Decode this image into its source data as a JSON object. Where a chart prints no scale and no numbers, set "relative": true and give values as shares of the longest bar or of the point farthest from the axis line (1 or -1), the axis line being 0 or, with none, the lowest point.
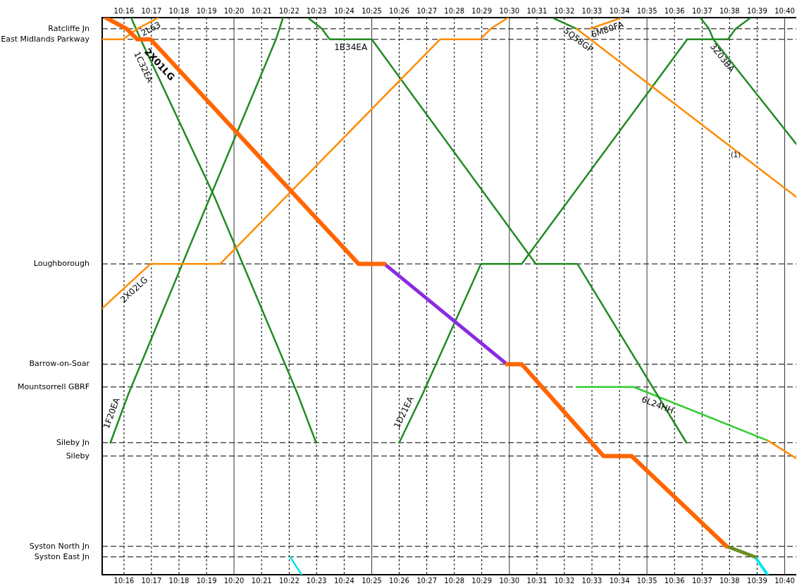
{
  "chart_data": {
    "type": "line",
    "marker": "none",
    "grid": "x",
    "legend": false,
    "relative": true,
    "xlim": [
      10.2535,
      10.6737
    ],
    "x2lim": [
      10.2535,
      10.6737
    ],
    "xticks": [
      {
        "value": 10.2667,
        "label": "10:16"
      },
      {
        "value": 10.2833,
        "label": "10:17"
      },
      {
        "value": 10.3,
        "label": "10:18"
      },
      {
        "value": 10.3167,
        "label": "10:19"
      },
      {
        "value": 10.3333,
        "label": "10:20"
      },
      {
        "value": 10.35,
        "label": "10:21"
      },
      {
        "value": 10.3667,
        "label": "10:22"
      },
      {
        "value": 10.3833,
        "label": "10:23"
      },
      {
        "value": 10.4,
        "label": "10:24"
      },
      {
        "value": 10.4167,
        "label": "10:25"
      },
      {
        "value": 10.4333,
        "label": "10:26"
      },
      {
        "value": 10.45,
        "label": "10:27"
      },
      {
        "value": 10.4667,
        "label": "10:28"
      },
      {
        "value": 10.4833,
        "label": "10:29"
      },
      {
        "value": 10.5,
        "label": "10:30"
      },
      {
        "value": 10.5167,
        "label": "10:31"
      },
      {
        "value": 10.5333,
        "label": "10:32"
      },
      {
        "value": 10.55,
        "label": "10:33"
      },
      {
        "value": 10.5667,
        "label": "10:34"
      },
      {
        "value": 10.5833,
        "label": "10:35"
      },
      {
        "value": 10.6,
        "label": "10:36"
      },
      {
        "value": 10.6167,
        "label": "10:37"
      },
      {
        "value": 10.6333,
        "label": "10:38"
      },
      {
        "value": 10.65,
        "label": "10:39"
      },
      {
        "value": 10.6667,
        "label": "10:40"
      }
    ],
    "x2ticks": [
      {
        "value": 10.2667,
        "label": "10:16"
      },
      {
        "value": 10.2833,
        "label": "10:17"
      },
      {
        "value": 10.3,
        "label": "10:18"
      },
      {
        "value": 10.3167,
        "label": "10:19"
      },
      {
        "value": 10.3333,
        "label": "10:20"
      },
      {
        "value": 10.35,
        "label": "10:21"
      },
      {
        "value": 10.3667,
        "label": "10:22"
      },
      {
        "value": 10.3833,
        "label": "10:23"
      },
      {
        "value": 10.4,
        "label": "10:24"
      },
      {
        "value": 10.4167,
        "label": "10:25"
      },
      {
        "value": 10.4333,
        "label": "10:26"
      },
      {
        "value": 10.45,
        "label": "10:27"
      },
      {
        "value": 10.4667,
        "label": "10:28"
      },
      {
        "value": 10.4833,
        "label": "10:29"
      },
      {
        "value": 10.5,
        "label": "10:30"
      },
      {
        "value": 10.5167,
        "label": "10:31"
      },
      {
        "value": 10.5333,
        "label": "10:32"
      },
      {
        "value": 10.55,
        "label": "10:33"
      },
      {
        "value": 10.5667,
        "label": "10:34"
      },
      {
        "value": 10.5833,
        "label": "10:35"
      },
      {
        "value": 10.6,
        "label": "10:36"
      },
      {
        "value": 10.6167,
        "label": "10:37"
      },
      {
        "value": 10.6333,
        "label": "10:38"
      },
      {
        "value": 10.65,
        "label": "10:39"
      },
      {
        "value": 10.6667,
        "label": "10:40"
      }
    ],
    "ref_lines": [
      {
        "axis": "y",
        "value": 0.98,
        "label": "Ratcliffe Jn",
        "line_style": "dashed"
      },
      {
        "axis": "y",
        "value": 0.961,
        "label": "East Midlands Parkway",
        "line_style": "dashed"
      },
      {
        "axis": "y",
        "value": 0.558,
        "label": "Loughborough",
        "line_style": "dashed"
      },
      {
        "axis": "y",
        "value": 0.378,
        "label": "Barrow-on-Soar",
        "line_style": "dashed"
      },
      {
        "axis": "y",
        "value": 0.337,
        "label": "Mountsorrell GBRF",
        "line_style": "dashed"
      },
      {
        "axis": "y",
        "value": 0.237,
        "label": "Sileby Jn",
        "line_style": "dashed"
      },
      {
        "axis": "y",
        "value": 0.213,
        "label": "Sileby",
        "line_style": "dashed"
      },
      {
        "axis": "y",
        "value": 0.051,
        "label": "Syston North Jn",
        "line_style": "dashed"
      },
      {
        "axis": "y",
        "value": 0.032,
        "label": "Syston East Jn",
        "line_style": "dashed"
      }
    ],
    "annotations": [
      {
        "text": "(1)",
        "x": 10.637,
        "y": 0.753
      }
    ],
    "series": [
      {
        "name": "2X01LG",
        "color": "#ff6600",
        "x": [
          10.2557,
          10.2683,
          10.2748,
          10.2828,
          10.4087,
          10.4243,
          10.4617,
          10.4985,
          10.5075,
          10.557,
          10.574,
          10.6315
        ],
        "values": [
          1,
          0.98,
          0.961,
          0.961,
          0.558,
          0.558,
          null,
          0.378,
          0.378,
          0.213,
          0.213,
          0.051
        ]
      },
      {
        "color": "#8a2be2",
        "x": [
          10.4243,
          10.4985
        ],
        "values": [
          0.558,
          0.378
        ]
      },
      {
        "color": "#6b8e23",
        "x": [
          10.6315,
          10.6487
        ],
        "values": [
          0.051,
          0.032
        ]
      },
      {
        "color": "#00e5ee",
        "x": [
          10.6487,
          10.6563
        ],
        "values": [
          0.032,
          0
        ]
      },
      {
        "color": "#00e5ee",
        "x": [
          10.3673,
          10.3742
        ],
        "values": [
          0.032,
          0
        ]
      },
      {
        "name": "2X02LG",
        "color": "#ff8c00",
        "x": [
          10.2535,
          10.2828,
          10.325,
          10.458,
          10.4823,
          10.4887,
          10.4993
        ],
        "values": [
          0.478,
          0.558,
          0.558,
          0.961,
          0.961,
          0.98,
          1
        ]
      },
      {
        "name": "2L63",
        "color": "#ff8c00",
        "x": [
          10.2535,
          10.2662,
          10.2748,
          10.2875
        ],
        "values": [
          0.961,
          0.961,
          0.98,
          1
        ]
      },
      {
        "name": "5Q58GP",
        "color": "#ff8c00",
        "x": [
          10.5407,
          10.6737
        ],
        "values": [
          0.98,
          0.678
        ]
      },
      {
        "name": "6M80FA",
        "color": "#ff8c00",
        "x": [
          10.5488,
          10.5672
        ],
        "values": [
          0.98,
          0.999
        ]
      },
      {
        "color": "#ff8c00",
        "x": [
          10.6563,
          10.6737
        ],
        "values": [
          0.241,
          0.209
        ]
      },
      {
        "name": "1C32EA",
        "color": "#228b22",
        "x": [
          10.271,
          10.2768,
          10.3217,
          10.372,
          10.383
        ],
        "values": [
          1,
          0.961,
          0.677,
          0.323,
          0.237
        ]
      },
      {
        "name": "1F20EA",
        "color": "#228b22",
        "x": [
          10.2585,
          10.2692,
          10.3187,
          10.3587,
          10.3608,
          10.363
        ],
        "values": [
          0.237,
          0.323,
          0.677,
          0.961,
          0.98,
          1
        ]
      },
      {
        "name": "1B34EA",
        "color": "#228b22",
        "x": [
          10.378,
          10.3865,
          10.3912,
          10.4167,
          10.516,
          10.5412,
          10.6072
        ],
        "values": [
          1,
          0.98,
          0.961,
          0.961,
          0.558,
          0.558,
          0.237
        ]
      },
      {
        "name": "1D21EA",
        "color": "#228b22",
        "x": [
          10.4333,
          10.4473,
          10.4828,
          10.5075,
          10.6077,
          10.6323,
          10.637,
          10.6457
        ],
        "values": [
          0.237,
          0.323,
          0.558,
          0.558,
          0.961,
          0.961,
          0.98,
          0.999
        ]
      },
      {
        "name": "3Z03BA",
        "color": "#228b22",
        "x": [
          10.6158,
          10.6208,
          10.6235,
          10.6737
        ],
        "values": [
          0.999,
          0.98,
          0.961,
          0.773
        ]
      },
      {
        "color": "#228b22",
        "x": [
          10.5267,
          10.5407
        ],
        "values": [
          0.999,
          0.98
        ]
      },
      {
        "name": "6L24HH",
        "color": "#32cd32",
        "x": [
          10.5412,
          10.5753,
          10.6563
        ],
        "values": [
          0.337,
          0.337,
          0.241
        ]
      }
    ]
  }
}
